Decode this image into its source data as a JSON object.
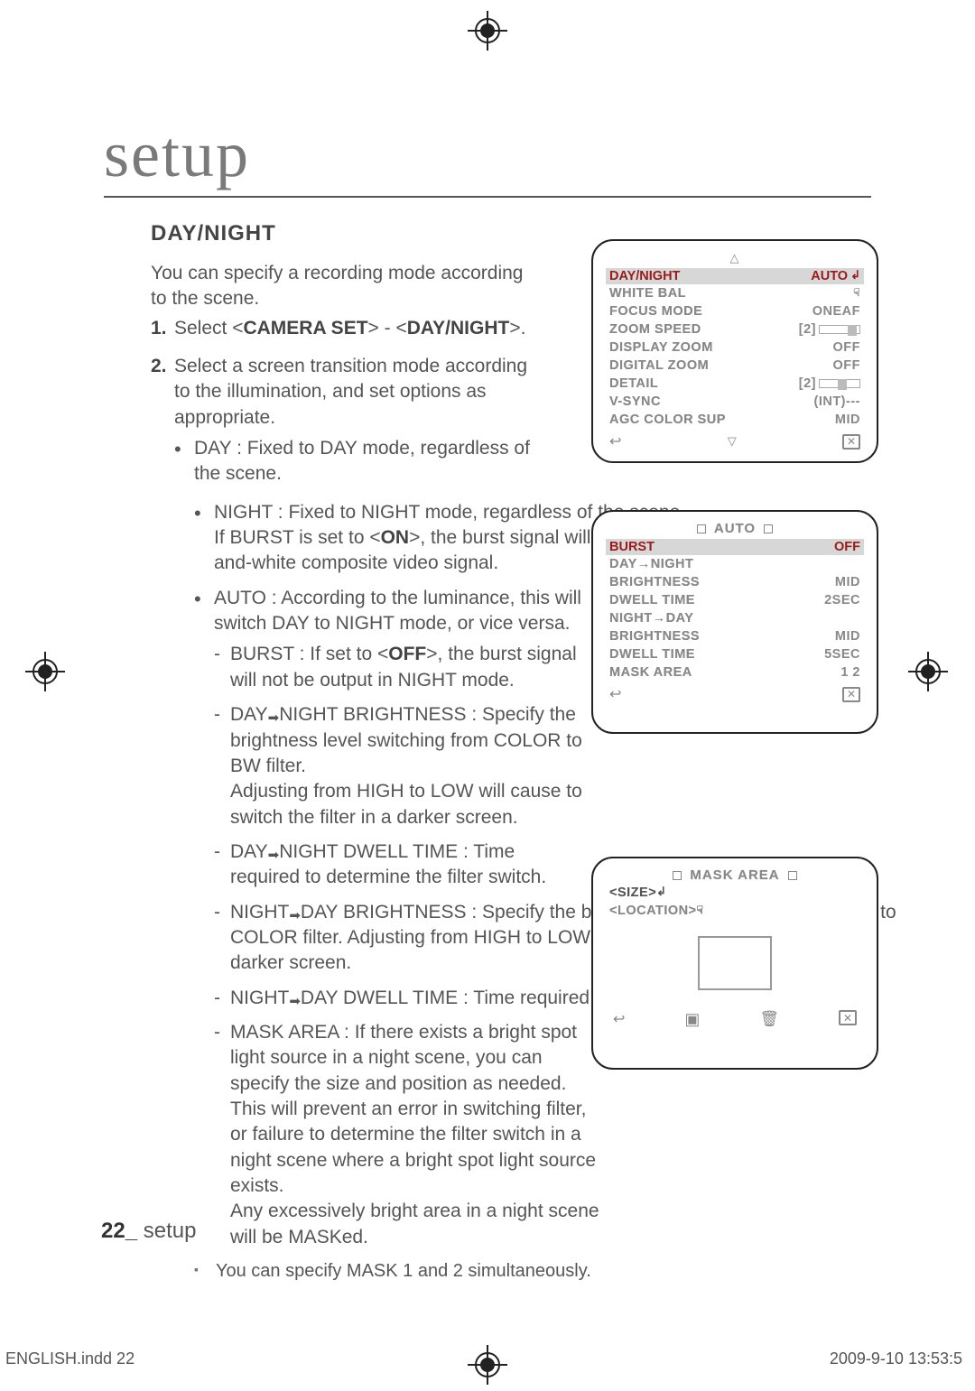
{
  "page": {
    "title": "setup",
    "section": "DAY/NIGHT",
    "intro": "You can specify a recording mode according to the scene.",
    "step1_prefix": "Select <",
    "step1_a": "CAMERA SET",
    "step1_mid": "> - <",
    "step1_b": "DAY/NIGHT",
    "step1_suffix": ">.",
    "step2": "Select a screen transition mode according to the illumination, and set options as appropriate.",
    "bullet_day": "DAY : Fixed to DAY mode, regardless of the scene.",
    "bullet_night_a": "NIGHT : Fixed to NIGHT mode, regardless of the scene.",
    "bullet_night_b_pre": "If BURST is set to <",
    "bullet_night_b_bold": "ON",
    "bullet_night_b_post": ">, the burst signal will be output along with the black-and-white composite video signal.",
    "bullet_auto": "AUTO : According to the luminance, this will switch DAY to NIGHT mode, or vice versa.",
    "dash_burst_pre": "BURST : If set to <",
    "dash_burst_bold": "OFF",
    "dash_burst_post": ">, the burst signal will not be output in NIGHT mode.",
    "dash_dn_bri": "DAY    NIGHT BRIGHTNESS : Specify the brightness level switching from COLOR to BW filter.",
    "dash_dn_bri2": "Adjusting from HIGH to LOW will cause to switch the filter in a darker screen.",
    "dash_dn_dwell": "DAY    NIGHT DWELL TIME : Time required to determine the filter switch.",
    "dash_nd_bri": "NIGHT    DAY BRIGHTNESS : Specify the brightness level switching from BW to COLOR filter. Adjusting from HIGH to LOW will cause to switch the filter in a darker screen.",
    "dash_nd_dwell": "NIGHT    DAY DWELL TIME : Time required to determine the filter switch.",
    "dash_mask_a": "MASK AREA : If there exists a bright spot light source in a night scene, you can specify the size and position as needed.",
    "dash_mask_b": "This will prevent an error in switching filter, or failure to determine the filter switch in a night scene where a bright spot light source exists.",
    "dash_mask_c": "Any excessively bright area in a night scene will be MASKed.",
    "note": "You can specify MASK 1 and 2 simultaneously.",
    "footer_num": "22_",
    "footer_txt": " setup",
    "print_left": "ENGLISH.indd   22",
    "print_right": "2009-9-10   13:53:5"
  },
  "osd1": {
    "hl_label": "DAY/NIGHT",
    "hl_val": "AUTO",
    "rows": [
      {
        "lab": "WHITE BAL",
        "val": "",
        "icon": "hand"
      },
      {
        "lab": "FOCUS MODE",
        "val": "ONEAF"
      },
      {
        "lab": "ZOOM SPEED",
        "val": "",
        "slider": {
          "prefix": "[2]",
          "pos": 0.85
        }
      },
      {
        "lab": "DISPLAY ZOOM",
        "val": "OFF"
      },
      {
        "lab": "DIGITAL ZOOM",
        "val": "OFF"
      },
      {
        "lab": "DETAIL",
        "val": "",
        "slider": {
          "prefix": "[2]",
          "pos": 0.55
        }
      },
      {
        "lab": "V-SYNC",
        "val": "(INT)---"
      },
      {
        "lab": "AGC COLOR SUP",
        "val": "MID"
      }
    ]
  },
  "osd2": {
    "title": "AUTO",
    "hl_label": "BURST",
    "hl_val": "OFF",
    "rows": [
      {
        "lab": "DAY→NIGHT",
        "val": ""
      },
      {
        "lab": "BRIGHTNESS",
        "val": "MID"
      },
      {
        "lab": "DWELL TIME",
        "val": "2SEC"
      },
      {
        "lab": "NIGHT→DAY",
        "val": ""
      },
      {
        "lab": "BRIGHTNESS",
        "val": "MID"
      },
      {
        "lab": "DWELL TIME",
        "val": "5SEC"
      },
      {
        "lab": "MASK AREA",
        "val": "1     2"
      }
    ]
  },
  "osd3": {
    "title": "MASK AREA",
    "line1": "<SIZE>",
    "line2": "<LOCATION>"
  }
}
